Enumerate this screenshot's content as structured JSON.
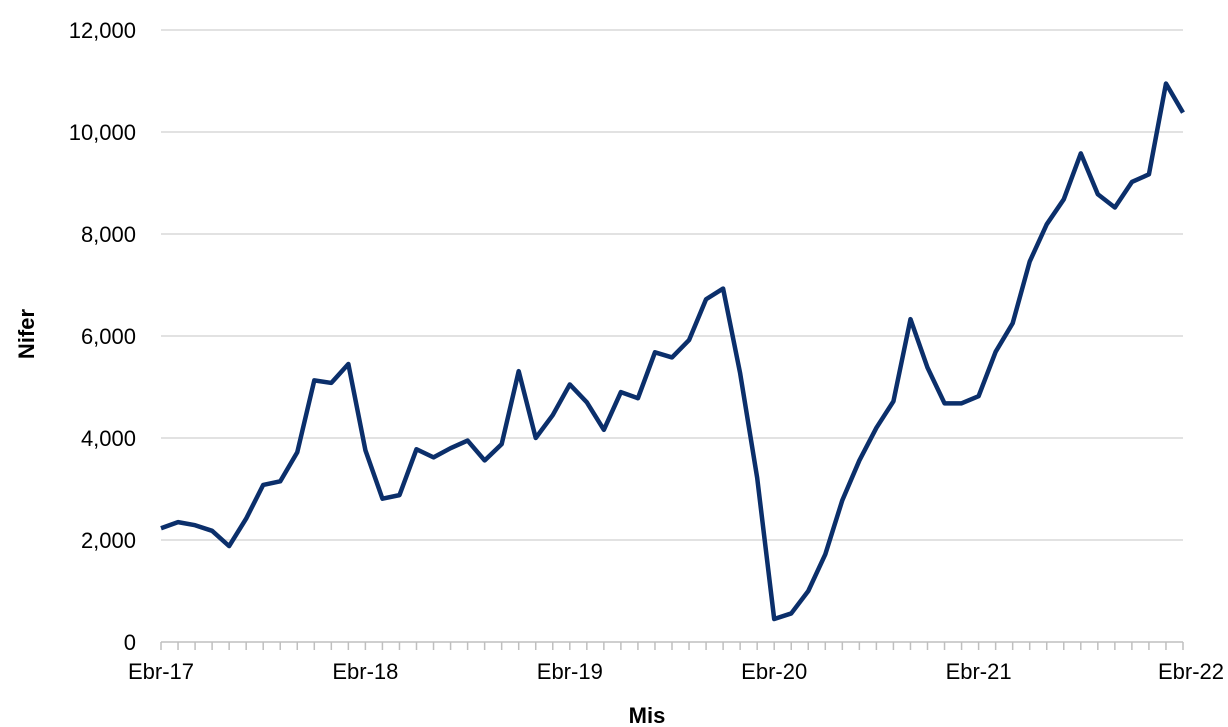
{
  "chart_data": {
    "type": "line",
    "xlabel": "Mis",
    "ylabel": "Nifer",
    "ylim": [
      0,
      12000
    ],
    "yticks": [
      0,
      2000,
      4000,
      6000,
      8000,
      10000,
      12000
    ],
    "ytick_labels": [
      "0",
      "2,000",
      "4,000",
      "6,000",
      "8,000",
      "10,000",
      "12,000"
    ],
    "x_tick_labels": [
      {
        "index": 0,
        "label": "Ebr-17"
      },
      {
        "index": 12,
        "label": "Ebr-18"
      },
      {
        "index": 24,
        "label": "Ebr-19"
      },
      {
        "index": 36,
        "label": "Ebr-20"
      },
      {
        "index": 48,
        "label": "Ebr-21"
      },
      {
        "index": 60,
        "label": "Ebr-22"
      }
    ],
    "grid": true,
    "legend": "none",
    "color": "#0b2f6b",
    "series": [
      {
        "values": [
          2230,
          2350,
          2290,
          2180,
          1880,
          2420,
          3080,
          3150,
          3720,
          5130,
          5080,
          5450,
          3760,
          2810,
          2880,
          3780,
          3620,
          3800,
          3950,
          3560,
          3880,
          5310,
          4000,
          4450,
          5050,
          4700,
          4160,
          4900,
          4780,
          5680,
          5580,
          5920,
          6720,
          6930,
          5270,
          3220,
          450,
          560,
          1000,
          1720,
          2780,
          3560,
          4200,
          4720,
          6330,
          5380,
          4680,
          4680,
          4820,
          5690,
          6250,
          7460,
          8190,
          8680,
          9580,
          8780,
          8520,
          9020,
          9170,
          10950,
          10380
        ]
      }
    ]
  }
}
